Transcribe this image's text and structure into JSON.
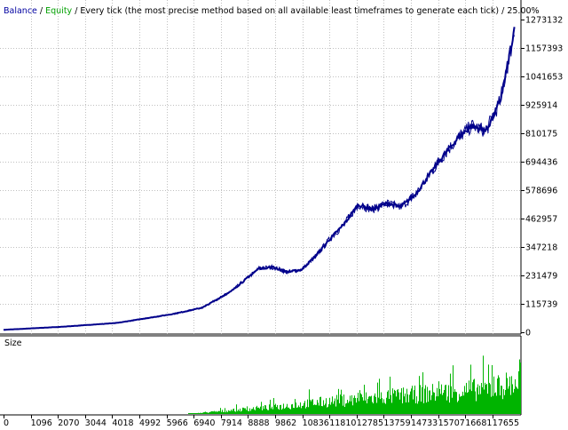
{
  "header": {
    "balance_label": "Balance",
    "separator1": " / ",
    "equity_label": "Equity",
    "description": " / Every tick (the most precise method based on all available least timeframes to generate each tick) / 25.00%"
  },
  "size_panel": {
    "label": "Size"
  },
  "colors": {
    "balance_text": "#0000a0",
    "equity_text": "#00a000",
    "balance_line": "#00008b",
    "equity_line": "#00008b",
    "size_bars": "#00b400",
    "grid": "#c0c0c0",
    "axis": "#000000"
  },
  "chart_data": [
    {
      "type": "line",
      "title": "",
      "series": [
        {
          "name": "Balance",
          "x": [
            0,
            2000,
            4000,
            6000,
            7000,
            8000,
            9000,
            9500,
            10000,
            10500,
            11000,
            11500,
            12000,
            12500,
            13000,
            13500,
            14000,
            14500,
            15000,
            15500,
            16000,
            16500,
            17000,
            17500,
            18000
          ],
          "y": [
            10000,
            22000,
            38000,
            75000,
            100000,
            165000,
            260000,
            265000,
            245000,
            255000,
            310000,
            380000,
            440000,
            520000,
            500000,
            525000,
            510000,
            560000,
            640000,
            720000,
            790000,
            840000,
            820000,
            940000,
            1225000
          ]
        },
        {
          "name": "Equity",
          "x": [
            0,
            2000,
            4000,
            6000,
            7000,
            8000,
            9000,
            9500,
            10000,
            10500,
            11000,
            11500,
            12000,
            12500,
            13000,
            13500,
            14000,
            14500,
            15000,
            15500,
            16000,
            16500,
            17000,
            17500,
            18000
          ],
          "y": [
            10000,
            22000,
            38000,
            75000,
            100000,
            165000,
            260000,
            265000,
            245000,
            255000,
            310000,
            380000,
            440000,
            520000,
            500000,
            525000,
            510000,
            560000,
            640000,
            720000,
            790000,
            840000,
            820000,
            940000,
            1225000
          ]
        }
      ],
      "y_ticks": [
        "1273132",
        "1157393",
        "1041653",
        "925914",
        "810175",
        "694436",
        "578696",
        "462957",
        "347218",
        "231479",
        "115739",
        "0"
      ],
      "ylim": [
        0,
        1273132
      ],
      "xlim": [
        0,
        18200
      ],
      "grid": true
    },
    {
      "type": "bar",
      "title": "Size",
      "x_ticks": [
        "0",
        "1096",
        "2070",
        "3044",
        "4018",
        "4992",
        "5966",
        "6940",
        "7914",
        "8888",
        "9862",
        "10836",
        "11810",
        "12785",
        "13759",
        "14733",
        "15707",
        "16681",
        "17655"
      ],
      "xlim": [
        0,
        18200
      ],
      "size_profile": {
        "x": [
          0,
          6500,
          8000,
          9500,
          11000,
          13000,
          15000,
          17000,
          18200
        ],
        "height": [
          0.0,
          0.0,
          0.08,
          0.15,
          0.25,
          0.35,
          0.45,
          0.55,
          0.7
        ]
      }
    }
  ]
}
